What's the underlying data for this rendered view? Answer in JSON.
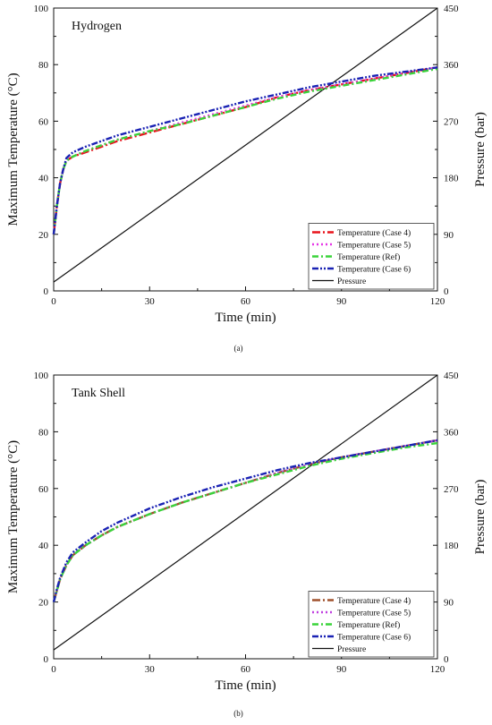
{
  "chart_data": [
    {
      "type": "line",
      "caption": "(a)",
      "panel_label": "Hydrogen",
      "xlabel": "Time (min)",
      "ylabel": "Maximum Temperature (°C)",
      "y2label": "Pressure (bar)",
      "xlim": [
        0,
        120
      ],
      "ylim": [
        0,
        100
      ],
      "y2lim": [
        0,
        450
      ],
      "xticks": [
        "0",
        "30",
        "60",
        "90",
        "120"
      ],
      "yticks": [
        "0",
        "20",
        "40",
        "60",
        "80",
        "100"
      ],
      "y2ticks": [
        "0",
        "90",
        "180",
        "270",
        "360",
        "450"
      ],
      "grid": false,
      "legend_position": "bottom-right",
      "series": [
        {
          "name": "Temperature (Case 4)",
          "axis": "left",
          "color": "#e8141c",
          "dash": "long-dash-dot",
          "x": [
            0,
            1,
            2,
            3,
            4,
            6,
            10,
            15,
            20,
            30,
            40,
            50,
            60,
            70,
            80,
            90,
            100,
            110,
            120
          ],
          "y": [
            20,
            30,
            38,
            43,
            46,
            47.5,
            49,
            51,
            53,
            56,
            59,
            62,
            65,
            68.5,
            71,
            73,
            75,
            77,
            79
          ]
        },
        {
          "name": "Temperature (Case 5)",
          "axis": "left",
          "color": "#e633e6",
          "dash": "dot",
          "x": [
            0,
            1,
            2,
            3,
            4,
            6,
            10,
            15,
            20,
            30,
            40,
            50,
            60,
            70,
            80,
            90,
            100,
            110,
            120
          ],
          "y": [
            20,
            30,
            38,
            43,
            46,
            47.5,
            49.5,
            51.5,
            53.5,
            56.5,
            59.5,
            62.5,
            65.5,
            68.5,
            71,
            73,
            75,
            77,
            79
          ]
        },
        {
          "name": "Temperature (Ref)",
          "axis": "left",
          "color": "#3ad43a",
          "dash": "dash-dot",
          "x": [
            0,
            1,
            2,
            3,
            4,
            6,
            10,
            15,
            20,
            30,
            40,
            50,
            60,
            70,
            80,
            90,
            100,
            110,
            120
          ],
          "y": [
            20,
            30,
            38,
            43,
            46,
            47.5,
            49.5,
            51.5,
            53.5,
            56.5,
            59,
            62,
            65,
            68,
            70.5,
            72.5,
            74.5,
            76.5,
            78.5
          ]
        },
        {
          "name": "Temperature (Case 6)",
          "axis": "left",
          "color": "#1a22b4",
          "dash": "dash-dot-dot",
          "x": [
            0,
            1,
            2,
            3,
            4,
            6,
            10,
            15,
            20,
            30,
            40,
            50,
            60,
            70,
            80,
            90,
            100,
            110,
            120
          ],
          "y": [
            20,
            30,
            38,
            43,
            47,
            49,
            51,
            53,
            55,
            58,
            61,
            64,
            67,
            69.5,
            72,
            74,
            76,
            77.5,
            79
          ]
        },
        {
          "name": "Pressure",
          "axis": "right",
          "color": "#111111",
          "dash": "solid",
          "x": [
            0,
            120
          ],
          "y": [
            14,
            450
          ]
        }
      ]
    },
    {
      "type": "line",
      "caption": "(b)",
      "panel_label": "Tank Shell",
      "xlabel": "Time (min)",
      "ylabel": "Maximum Temperature (°C)",
      "y2label": "Pressure (bar)",
      "xlim": [
        0,
        120
      ],
      "ylim": [
        0,
        100
      ],
      "y2lim": [
        0,
        450
      ],
      "xticks": [
        "0",
        "30",
        "60",
        "90",
        "120"
      ],
      "yticks": [
        "0",
        "20",
        "40",
        "60",
        "80",
        "100"
      ],
      "y2ticks": [
        "0",
        "90",
        "180",
        "270",
        "360",
        "450"
      ],
      "grid": false,
      "legend_position": "bottom-right",
      "series": [
        {
          "name": "Temperature (Case 4)",
          "axis": "left",
          "color": "#a0522d",
          "dash": "long-dash-dot",
          "x": [
            0,
            1,
            2,
            4,
            6,
            10,
            15,
            20,
            30,
            40,
            50,
            60,
            70,
            80,
            90,
            100,
            110,
            120
          ],
          "y": [
            20,
            24,
            28,
            33,
            36.5,
            40,
            43.5,
            46.5,
            51,
            55,
            58.5,
            62,
            65.5,
            68.5,
            71,
            73,
            75,
            77
          ]
        },
        {
          "name": "Temperature (Case 5)",
          "axis": "left",
          "color": "#c040e0",
          "dash": "dot",
          "x": [
            0,
            1,
            2,
            4,
            6,
            10,
            15,
            20,
            30,
            40,
            50,
            60,
            70,
            80,
            90,
            100,
            110,
            120
          ],
          "y": [
            20,
            24,
            28,
            33,
            36.5,
            40,
            43.5,
            46.5,
            51,
            55,
            58.5,
            62,
            65.5,
            68.5,
            71,
            73,
            75,
            77
          ]
        },
        {
          "name": "Temperature (Ref)",
          "axis": "left",
          "color": "#3ad43a",
          "dash": "dash-dot",
          "x": [
            0,
            1,
            2,
            4,
            6,
            10,
            15,
            20,
            30,
            40,
            50,
            60,
            70,
            80,
            90,
            100,
            110,
            120
          ],
          "y": [
            20,
            24,
            28,
            33,
            36.5,
            40,
            43.5,
            46.5,
            51,
            55,
            58.5,
            62,
            65,
            68,
            70.5,
            72.5,
            74.5,
            76
          ]
        },
        {
          "name": "Temperature (Case 6)",
          "axis": "left",
          "color": "#1a22b4",
          "dash": "dash-dot-dot",
          "x": [
            0,
            1,
            2,
            4,
            6,
            10,
            15,
            20,
            30,
            40,
            50,
            60,
            70,
            80,
            90,
            100,
            110,
            120
          ],
          "y": [
            20,
            24.5,
            28.5,
            34,
            37.5,
            41,
            45,
            48,
            53,
            57,
            60.5,
            63.5,
            66.5,
            69,
            71,
            73,
            75,
            77
          ]
        },
        {
          "name": "Pressure",
          "axis": "right",
          "color": "#111111",
          "dash": "solid",
          "x": [
            0,
            120
          ],
          "y": [
            14,
            450
          ]
        }
      ]
    }
  ]
}
